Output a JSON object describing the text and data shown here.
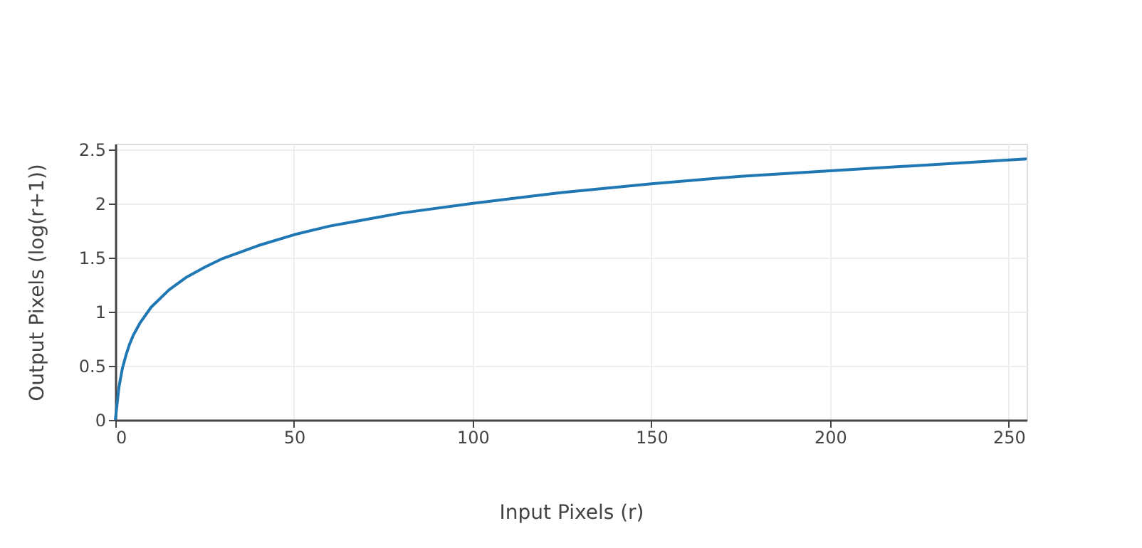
{
  "chart_data": {
    "type": "line",
    "xlabel": "Input Pixels (r)",
    "ylabel": "Output Pixels (log(r+1))",
    "x": [
      0,
      1,
      2,
      3,
      4,
      5,
      7,
      10,
      15,
      20,
      25,
      30,
      40,
      50,
      60,
      70,
      80,
      100,
      125,
      150,
      175,
      200,
      225,
      255
    ],
    "series": [
      {
        "color": "#1f77b4",
        "values": [
          0,
          0.3,
          0.48,
          0.6,
          0.7,
          0.78,
          0.9,
          1.04,
          1.2,
          1.32,
          1.41,
          1.49,
          1.61,
          1.71,
          1.79,
          1.85,
          1.91,
          2.0,
          2.1,
          2.18,
          2.25,
          2.3,
          2.35,
          2.41
        ]
      }
    ],
    "xlim": [
      0,
      255
    ],
    "ylim": [
      0,
      2.55
    ],
    "xticks": [
      0,
      50,
      100,
      150,
      200,
      250
    ],
    "yticks": [
      0,
      0.5,
      1,
      1.5,
      2,
      2.5
    ],
    "grid": true,
    "marker": "none",
    "line_style": "solid"
  }
}
